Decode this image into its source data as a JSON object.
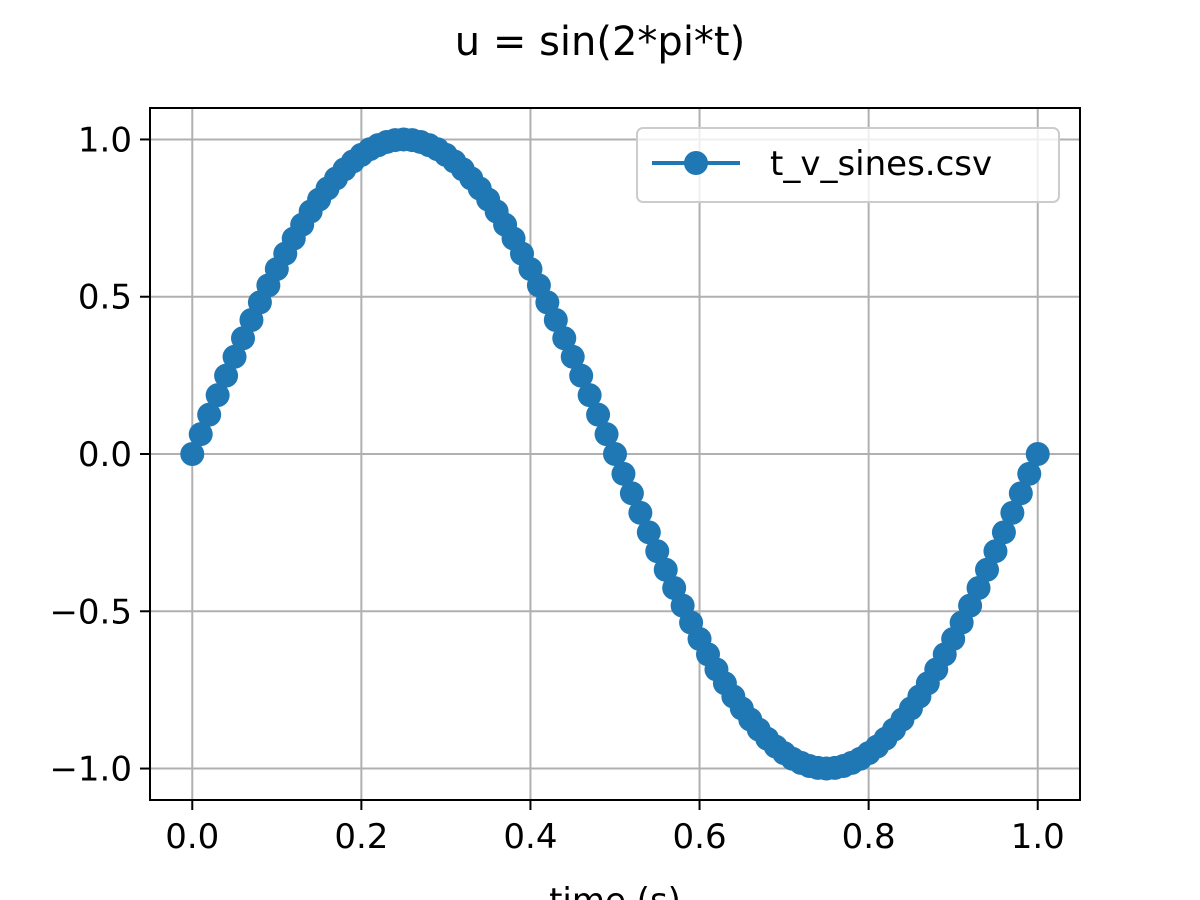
{
  "chart_data": {
    "type": "line",
    "title": "u = sin(2*pi*t)",
    "xlabel": "time (s)",
    "ylabel": "",
    "xlim": [
      -0.05,
      1.05
    ],
    "ylim": [
      -1.1,
      1.1
    ],
    "grid": true,
    "legend_position": "top-right",
    "x_ticks": [
      0.0,
      0.2,
      0.4,
      0.6,
      0.8,
      1.0
    ],
    "x_tick_labels": [
      "0.0",
      "0.2",
      "0.4",
      "0.6",
      "0.8",
      "1.0"
    ],
    "y_ticks": [
      1.0,
      0.5,
      0.0,
      -0.5,
      -1.0
    ],
    "y_tick_labels": [
      "1.0",
      "0.5",
      "0.0",
      "−0.5",
      "−1.0"
    ],
    "colors": {
      "series": "#1f77b4",
      "grid": "#b0b0b0",
      "axes": "#000000"
    },
    "series": [
      {
        "name": "t_v_sines.csv",
        "marker": "circle",
        "x": [
          0.0,
          0.01,
          0.02,
          0.03,
          0.04,
          0.05,
          0.06,
          0.07,
          0.08,
          0.09,
          0.1,
          0.11,
          0.12,
          0.13,
          0.14,
          0.15,
          0.16,
          0.17,
          0.18,
          0.19,
          0.2,
          0.21,
          0.22,
          0.23,
          0.24,
          0.25,
          0.26,
          0.27,
          0.28,
          0.29,
          0.3,
          0.31,
          0.32,
          0.33,
          0.34,
          0.35,
          0.36,
          0.37,
          0.38,
          0.39,
          0.4,
          0.41,
          0.42,
          0.43,
          0.44,
          0.45,
          0.46,
          0.47,
          0.48,
          0.49,
          0.5,
          0.51,
          0.52,
          0.53,
          0.54,
          0.55,
          0.56,
          0.57,
          0.58,
          0.59,
          0.6,
          0.61,
          0.62,
          0.63,
          0.64,
          0.65,
          0.66,
          0.67,
          0.68,
          0.69,
          0.7,
          0.71,
          0.72,
          0.73,
          0.74,
          0.75,
          0.76,
          0.77,
          0.78,
          0.79,
          0.8,
          0.81,
          0.82,
          0.83,
          0.84,
          0.85,
          0.86,
          0.87,
          0.88,
          0.89,
          0.9,
          0.91,
          0.92,
          0.93,
          0.94,
          0.95,
          0.96,
          0.97,
          0.98,
          0.99,
          1.0
        ],
        "y": [
          0.0,
          0.063,
          0.125,
          0.187,
          0.249,
          0.309,
          0.368,
          0.426,
          0.482,
          0.536,
          0.588,
          0.637,
          0.685,
          0.729,
          0.771,
          0.809,
          0.844,
          0.876,
          0.905,
          0.93,
          0.951,
          0.969,
          0.982,
          0.992,
          0.998,
          1.0,
          0.998,
          0.992,
          0.982,
          0.969,
          0.951,
          0.93,
          0.905,
          0.876,
          0.844,
          0.809,
          0.771,
          0.729,
          0.685,
          0.637,
          0.588,
          0.536,
          0.482,
          0.426,
          0.368,
          0.309,
          0.249,
          0.187,
          0.125,
          0.063,
          0.0,
          -0.063,
          -0.125,
          -0.187,
          -0.249,
          -0.309,
          -0.368,
          -0.426,
          -0.482,
          -0.536,
          -0.588,
          -0.637,
          -0.685,
          -0.729,
          -0.771,
          -0.809,
          -0.844,
          -0.876,
          -0.905,
          -0.93,
          -0.951,
          -0.969,
          -0.982,
          -0.992,
          -0.998,
          -1.0,
          -0.998,
          -0.992,
          -0.982,
          -0.969,
          -0.951,
          -0.93,
          -0.905,
          -0.876,
          -0.844,
          -0.809,
          -0.771,
          -0.729,
          -0.685,
          -0.637,
          -0.588,
          -0.536,
          -0.482,
          -0.426,
          -0.368,
          -0.309,
          -0.249,
          -0.187,
          -0.125,
          -0.063,
          0.0
        ]
      }
    ]
  }
}
